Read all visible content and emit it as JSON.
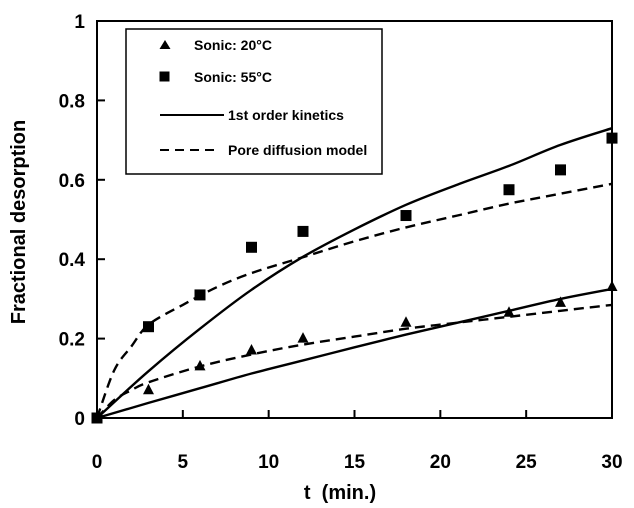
{
  "chart_data": {
    "type": "scatter",
    "xlabel": "t  (min.)",
    "ylabel": "Fractional desorption",
    "xlim": [
      0,
      30
    ],
    "ylim": [
      0,
      1
    ],
    "x_ticks": [
      "0",
      "5",
      "10",
      "15",
      "20",
      "25",
      "30"
    ],
    "y_ticks": [
      "0",
      "0.2",
      "0.4",
      "0.6",
      "0.8",
      "1"
    ],
    "grid": false,
    "legend_position": "top-left",
    "series": [
      {
        "name": "Sonic: 20°C",
        "kind": "markers",
        "marker": "triangle",
        "points": [
          [
            0,
            0.0
          ],
          [
            3,
            0.07
          ],
          [
            6,
            0.13
          ],
          [
            9,
            0.17
          ],
          [
            12,
            0.2
          ],
          [
            18,
            0.24
          ],
          [
            24,
            0.265
          ],
          [
            27,
            0.29
          ],
          [
            30,
            0.33
          ]
        ]
      },
      {
        "name": "Sonic: 55°C",
        "kind": "markers",
        "marker": "square",
        "points": [
          [
            0,
            0.0
          ],
          [
            3,
            0.23
          ],
          [
            6,
            0.31
          ],
          [
            9,
            0.43
          ],
          [
            12,
            0.47
          ],
          [
            18,
            0.51
          ],
          [
            24,
            0.575
          ],
          [
            27,
            0.625
          ],
          [
            30,
            0.705
          ]
        ]
      },
      {
        "name": "1st order kinetics",
        "kind": "line",
        "dash": "solid",
        "curves": [
          [
            [
              0,
              0.0
            ],
            [
              3,
              0.118
            ],
            [
              6,
              0.225
            ],
            [
              9,
              0.323
            ],
            [
              12,
              0.406
            ],
            [
              15,
              0.475
            ],
            [
              18,
              0.537
            ],
            [
              21,
              0.588
            ],
            [
              24,
              0.635
            ],
            [
              27,
              0.688
            ],
            [
              30,
              0.73
            ]
          ],
          [
            [
              0,
              0.0
            ],
            [
              3,
              0.038
            ],
            [
              6,
              0.075
            ],
            [
              9,
              0.112
            ],
            [
              12,
              0.145
            ],
            [
              15,
              0.178
            ],
            [
              18,
              0.21
            ],
            [
              21,
              0.24
            ],
            [
              24,
              0.27
            ],
            [
              27,
              0.3
            ],
            [
              30,
              0.325
            ]
          ]
        ]
      },
      {
        "name": "Pore diffusion model",
        "kind": "line",
        "dash": "dashed",
        "curves": [
          [
            [
              0,
              0.0
            ],
            [
              1,
              0.12
            ],
            [
              2,
              0.18
            ],
            [
              3,
              0.235
            ],
            [
              5,
              0.285
            ],
            [
              7,
              0.33
            ],
            [
              9,
              0.365
            ],
            [
              12,
              0.405
            ],
            [
              15,
              0.445
            ],
            [
              18,
              0.48
            ],
            [
              21,
              0.51
            ],
            [
              24,
              0.54
            ],
            [
              27,
              0.565
            ],
            [
              30,
              0.59
            ]
          ],
          [
            [
              0,
              0.0
            ],
            [
              1,
              0.045
            ],
            [
              2,
              0.07
            ],
            [
              3,
              0.09
            ],
            [
              6,
              0.13
            ],
            [
              9,
              0.16
            ],
            [
              12,
              0.185
            ],
            [
              15,
              0.205
            ],
            [
              18,
              0.225
            ],
            [
              21,
              0.24
            ],
            [
              24,
              0.255
            ],
            [
              27,
              0.27
            ],
            [
              30,
              0.285
            ]
          ]
        ]
      }
    ]
  }
}
